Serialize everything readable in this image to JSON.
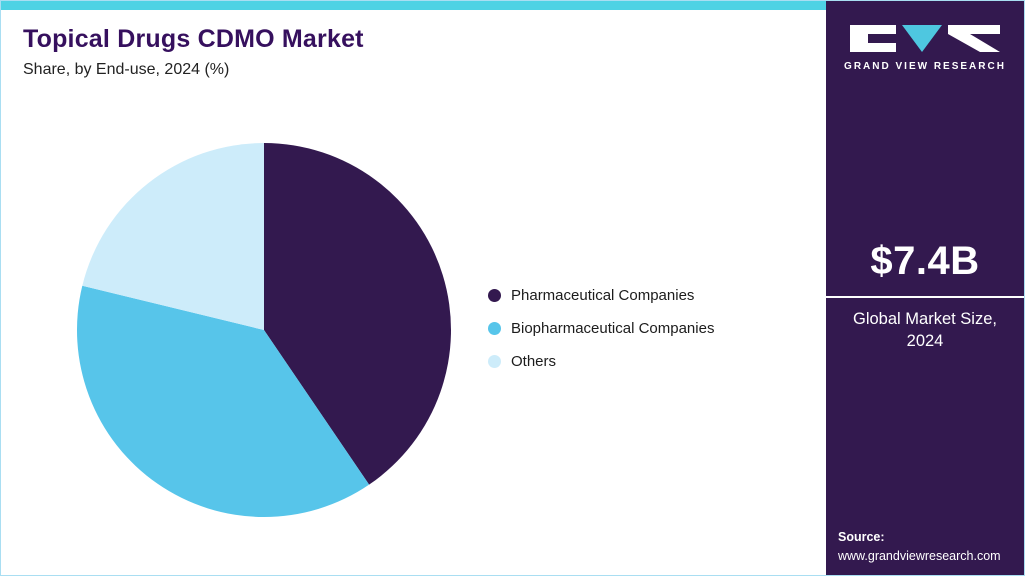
{
  "header": {
    "title": "Topical Drugs CDMO Market",
    "subtitle": "Share, by End-use, 2024 (%)"
  },
  "chart_data": {
    "type": "pie",
    "title": "Topical Drugs CDMO Market Share, by End-use, 2024 (%)",
    "start_angle_deg": 0,
    "direction": "clockwise",
    "data_labels": false,
    "legend_position": "right",
    "slices": [
      {
        "label": "Pharmaceutical Companies",
        "value": 40.5,
        "color": "#33194f"
      },
      {
        "label": "Biopharmaceutical Companies",
        "value": 38.3,
        "color": "#57c5ea"
      },
      {
        "label": "Others",
        "value": 21.2,
        "color": "#cdecfa"
      }
    ]
  },
  "sidebar": {
    "logo_text": "GRAND VIEW RESEARCH",
    "market_size_value": "$7.4B",
    "market_size_label": "Global Market Size, 2024",
    "source_label": "Source:",
    "source_url": "www.grandviewresearch.com"
  },
  "colors": {
    "top_bar": "#4ed2e4",
    "title": "#36105e",
    "sidebar_bg": "#33194f",
    "logo_accent": "#4ec7e0",
    "border": "#a9def2"
  }
}
